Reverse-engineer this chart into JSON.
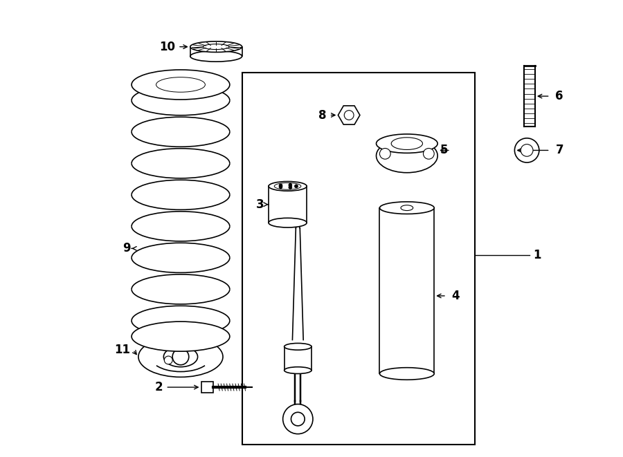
{
  "bg_color": "#ffffff",
  "line_color": "#000000",
  "gray_color": "#888888",
  "light_gray": "#aaaaaa"
}
